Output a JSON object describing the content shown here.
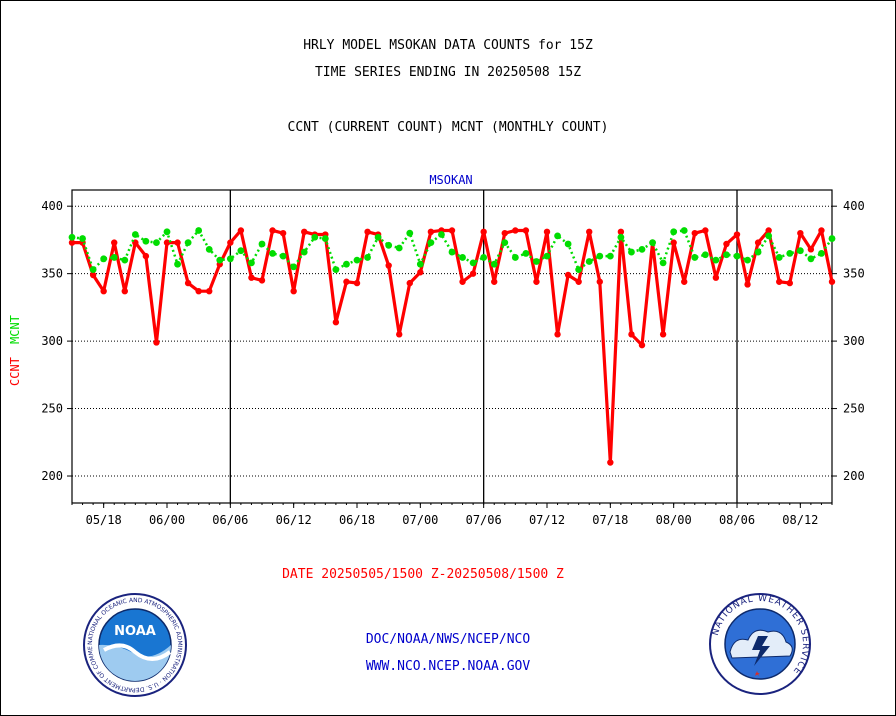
{
  "header": {
    "title_line1": "HRLY MODEL MSOKAN DATA COUNTS for 15Z",
    "title_line2": "TIME SERIES ENDING IN 20250508 15Z",
    "subtitle": "CCNT (CURRENT COUNT) MCNT (MONTHLY COUNT)"
  },
  "chart_data": {
    "type": "line",
    "title": "MSOKAN",
    "ylabel_ccnt": "CCNT",
    "ylabel_mcnt": "MCNT",
    "xlabel": "DATE 20250505/1500 Z-20250508/1500 Z",
    "ylim": [
      180,
      412
    ],
    "yticks": [
      200,
      250,
      300,
      350,
      400
    ],
    "x_tick_labels": [
      "05/18",
      "06/00",
      "06/06",
      "06/12",
      "06/18",
      "07/00",
      "07/06",
      "07/12",
      "07/18",
      "08/00",
      "08/06",
      "08/12"
    ],
    "x_range_hours": [
      15,
      87
    ],
    "grid": true,
    "colors": {
      "ccnt": "#ff0000",
      "mcnt": "#00dd00",
      "title": "#0000cc",
      "xlabel": "#ff0000"
    },
    "series": [
      {
        "name": "CCNT",
        "x": [
          15,
          16,
          17,
          18,
          19,
          20,
          21,
          22,
          23,
          24,
          25,
          26,
          27,
          28,
          29,
          30,
          31,
          32,
          33,
          34,
          35,
          36,
          37,
          38,
          39,
          40,
          41,
          42,
          43,
          44,
          45,
          46,
          47,
          48,
          49,
          50,
          51,
          52,
          53,
          54,
          55,
          56,
          57,
          58,
          59,
          60,
          61,
          62,
          63,
          64,
          65,
          66,
          67,
          68,
          69,
          70,
          71,
          72,
          73,
          74,
          75,
          76,
          77,
          78,
          79,
          80,
          81,
          82,
          83,
          84,
          85,
          86,
          87
        ],
        "values": [
          373,
          373,
          349,
          337,
          373,
          337,
          373,
          363,
          299,
          373,
          373,
          343,
          337,
          337,
          357,
          373,
          382,
          347,
          345,
          382,
          380,
          337,
          381,
          379,
          379,
          314,
          344,
          343,
          381,
          379,
          356,
          305,
          343,
          351,
          381,
          382,
          382,
          344,
          350,
          381,
          344,
          380,
          382,
          382,
          344,
          381,
          305,
          349,
          344,
          381,
          344,
          210,
          381,
          305,
          297,
          373,
          305,
          373,
          344,
          380,
          382,
          347,
          372,
          379,
          342,
          373,
          382,
          344,
          343,
          380,
          368,
          382,
          344
        ]
      },
      {
        "name": "MCNT",
        "x": [
          15,
          16,
          17,
          18,
          19,
          20,
          21,
          22,
          23,
          24,
          25,
          26,
          27,
          28,
          29,
          30,
          31,
          32,
          33,
          34,
          35,
          36,
          37,
          38,
          39,
          40,
          41,
          42,
          43,
          44,
          45,
          46,
          47,
          48,
          49,
          50,
          51,
          52,
          53,
          54,
          55,
          56,
          57,
          58,
          59,
          60,
          61,
          62,
          63,
          64,
          65,
          66,
          67,
          68,
          69,
          70,
          71,
          72,
          73,
          74,
          75,
          76,
          77,
          78,
          79,
          80,
          81,
          82,
          83,
          84,
          85,
          86,
          87
        ],
        "values": [
          377,
          376,
          353,
          361,
          362,
          360,
          379,
          374,
          373,
          381,
          357,
          373,
          382,
          368,
          360,
          361,
          367,
          358,
          372,
          365,
          363,
          355,
          366,
          377,
          376,
          353,
          357,
          360,
          362,
          377,
          371,
          369,
          380,
          357,
          373,
          379,
          366,
          362,
          358,
          362,
          357,
          373,
          362,
          365,
          359,
          363,
          378,
          372,
          353,
          359,
          363,
          363,
          377,
          366,
          368,
          373,
          358,
          381,
          382,
          362,
          364,
          360,
          364,
          363,
          360,
          366,
          378,
          362,
          365,
          367,
          361,
          365,
          376
        ]
      }
    ]
  },
  "footer": {
    "link1": "DOC/NOAA/NWS/NCEP/NCO",
    "link2": "WWW.NCO.NCEP.NOAA.GOV",
    "noaa_logo_text": "NOAA",
    "noaa_ring_text": "NATIONAL OCEANIC AND ATMOSPHERIC ADMINISTRATION · U.S. DEPARTMENT OF COMMERCE ·",
    "nws_ring_text": "NATIONAL WEATHER SERVICE"
  }
}
